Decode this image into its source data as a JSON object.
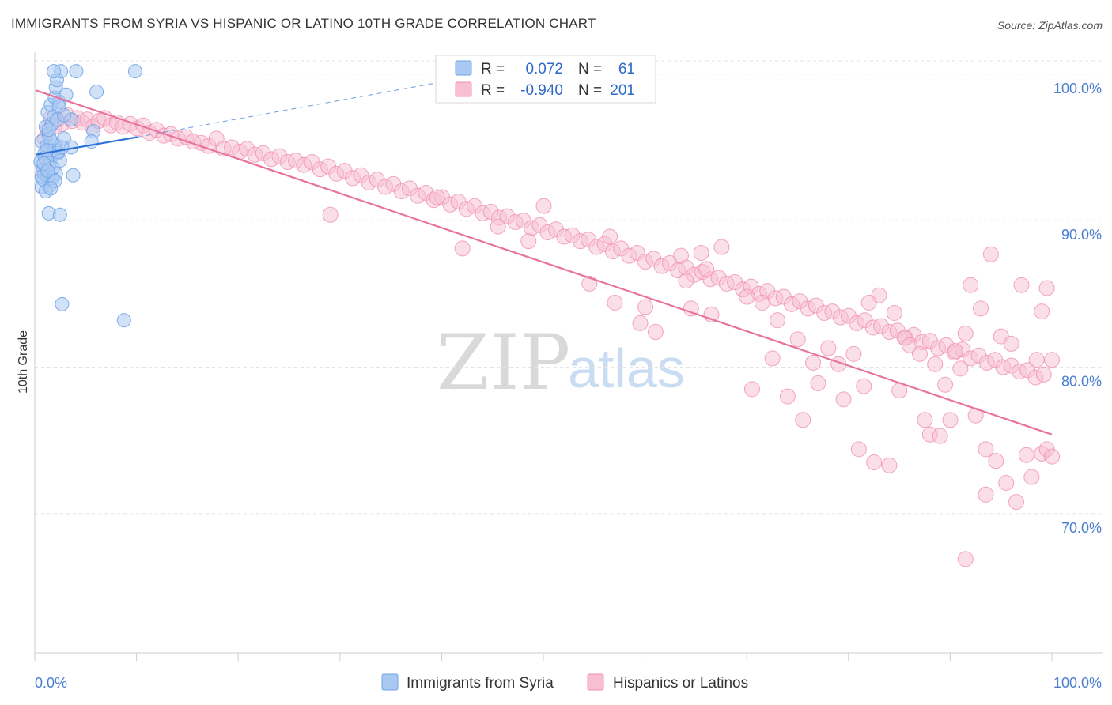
{
  "title": "IMMIGRANTS FROM SYRIA VS HISPANIC OR LATINO 10TH GRADE CORRELATION CHART",
  "source": "Source: ZipAtlas.com",
  "watermark": {
    "zip": "ZIP",
    "atlas": "atlas"
  },
  "colors": {
    "blue": "#6fa5e8",
    "blue_fill": "#a9c9f2",
    "blue_line": "#2f72d6",
    "pink": "#f08fb0",
    "pink_fill": "#f7bfd1",
    "pink_line": "#e8739c",
    "grid": "#e3e3e3",
    "tick_label": "#4a7fd0"
  },
  "stats_box": {
    "rows": [
      {
        "r_label": "R =",
        "r_value": "0.072",
        "n_label": "N =",
        "n_value": "61"
      },
      {
        "r_label": "R =",
        "r_value": "-0.940",
        "n_label": "N =",
        "n_value": "201"
      }
    ]
  },
  "legend": {
    "items": [
      {
        "label": "Immigrants from Syria"
      },
      {
        "label": "Hispanics or Latinos"
      }
    ]
  },
  "chart_data": {
    "type": "scatter",
    "title": "IMMIGRANTS FROM SYRIA VS HISPANIC OR LATINO 10TH GRADE CORRELATION CHART",
    "xlabel": "",
    "ylabel": "10th Grade",
    "xlim": [
      0,
      100
    ],
    "ylim": [
      60.5,
      101.5
    ],
    "x_tick_labels": [
      "0.0%",
      "100.0%"
    ],
    "y_ticks": [
      70,
      80,
      90,
      100
    ],
    "y_tick_labels": [
      "70.0%",
      "80.0%",
      "90.0%",
      "100.0%"
    ],
    "grid": true,
    "legend_position": "bottom",
    "series": [
      {
        "name": "Immigrants from Syria",
        "r": 0.072,
        "n": 61,
        "trend_solid": [
          [
            0.0,
            94.5
          ],
          [
            10.0,
            95.7
          ]
        ],
        "trend_dashed": [
          [
            10.0,
            95.7
          ],
          [
            41.0,
            99.6
          ]
        ],
        "points": [
          [
            0.6,
            92.3
          ],
          [
            0.5,
            94.0
          ],
          [
            0.7,
            93.3
          ],
          [
            0.8,
            92.8
          ],
          [
            1.0,
            93.6
          ],
          [
            1.2,
            93.0
          ],
          [
            1.4,
            92.4
          ],
          [
            0.6,
            95.4
          ],
          [
            0.9,
            94.6
          ],
          [
            1.1,
            95.1
          ],
          [
            1.3,
            93.8
          ],
          [
            1.5,
            94.3
          ],
          [
            1.8,
            94.8
          ],
          [
            2.0,
            93.2
          ],
          [
            1.0,
            96.4
          ],
          [
            1.3,
            95.9
          ],
          [
            1.6,
            96.6
          ],
          [
            1.9,
            95.2
          ],
          [
            2.2,
            94.6
          ],
          [
            2.4,
            94.1
          ],
          [
            1.2,
            97.4
          ],
          [
            1.5,
            97.9
          ],
          [
            1.8,
            97.1
          ],
          [
            2.1,
            96.9
          ],
          [
            2.3,
            98.1
          ],
          [
            1.9,
            98.4
          ],
          [
            2.0,
            99.1
          ],
          [
            2.1,
            99.6
          ],
          [
            2.5,
            100.2
          ],
          [
            1.8,
            100.2
          ],
          [
            4.0,
            100.2
          ],
          [
            9.8,
            100.2
          ],
          [
            3.0,
            98.6
          ],
          [
            3.5,
            96.9
          ],
          [
            2.8,
            95.6
          ],
          [
            3.5,
            95.0
          ],
          [
            5.7,
            96.1
          ],
          [
            5.5,
            95.4
          ],
          [
            6.0,
            98.8
          ],
          [
            3.7,
            93.1
          ],
          [
            1.3,
            90.5
          ],
          [
            2.4,
            90.4
          ],
          [
            2.6,
            84.3
          ],
          [
            8.7,
            83.2
          ],
          [
            0.7,
            93.5
          ],
          [
            1.0,
            92.0
          ],
          [
            1.6,
            92.9
          ],
          [
            2.2,
            94.7
          ],
          [
            0.9,
            94.3
          ],
          [
            1.4,
            95.6
          ],
          [
            1.7,
            93.6
          ],
          [
            2.6,
            95.0
          ],
          [
            0.8,
            93.9
          ],
          [
            1.1,
            94.8
          ],
          [
            1.9,
            92.7
          ],
          [
            1.3,
            96.2
          ],
          [
            2.8,
            97.2
          ],
          [
            0.6,
            93.0
          ],
          [
            1.5,
            92.2
          ],
          [
            2.3,
            97.8
          ],
          [
            1.2,
            93.4
          ]
        ]
      },
      {
        "name": "Hispanics or Latinos",
        "r": -0.94,
        "n": 201,
        "trend": [
          [
            0.0,
            98.9
          ],
          [
            100.0,
            75.4
          ]
        ],
        "points": [
          [
            0.9,
            95.6
          ],
          [
            1.2,
            96.2
          ],
          [
            1.5,
            97.0
          ],
          [
            1.8,
            96.4
          ],
          [
            2.2,
            96.9
          ],
          [
            2.6,
            96.6
          ],
          [
            3.1,
            97.2
          ],
          [
            3.6,
            96.8
          ],
          [
            4.1,
            97.0
          ],
          [
            4.6,
            96.7
          ],
          [
            5.1,
            96.9
          ],
          [
            5.6,
            96.4
          ],
          [
            6.2,
            96.8
          ],
          [
            6.8,
            97.0
          ],
          [
            7.4,
            96.5
          ],
          [
            8.0,
            96.7
          ],
          [
            8.6,
            96.4
          ],
          [
            9.3,
            96.6
          ],
          [
            10.0,
            96.3
          ],
          [
            10.6,
            96.5
          ],
          [
            11.2,
            96.0
          ],
          [
            11.9,
            96.2
          ],
          [
            12.6,
            95.8
          ],
          [
            13.3,
            95.9
          ],
          [
            14.0,
            95.6
          ],
          [
            14.8,
            95.7
          ],
          [
            15.5,
            95.4
          ],
          [
            16.3,
            95.3
          ],
          [
            17.0,
            95.1
          ],
          [
            17.8,
            95.6
          ],
          [
            18.5,
            94.9
          ],
          [
            19.3,
            95.0
          ],
          [
            20.1,
            94.7
          ],
          [
            20.8,
            94.9
          ],
          [
            21.6,
            94.5
          ],
          [
            22.4,
            94.6
          ],
          [
            23.2,
            94.2
          ],
          [
            24.0,
            94.4
          ],
          [
            24.8,
            94.0
          ],
          [
            25.6,
            94.1
          ],
          [
            26.4,
            93.8
          ],
          [
            27.2,
            94.0
          ],
          [
            28.0,
            93.5
          ],
          [
            28.8,
            93.7
          ],
          [
            29.6,
            93.2
          ],
          [
            30.4,
            93.4
          ],
          [
            31.2,
            92.9
          ],
          [
            32.0,
            93.1
          ],
          [
            32.8,
            92.6
          ],
          [
            33.6,
            92.8
          ],
          [
            34.4,
            92.3
          ],
          [
            35.2,
            92.5
          ],
          [
            36.0,
            92.0
          ],
          [
            36.8,
            92.2
          ],
          [
            37.6,
            91.7
          ],
          [
            38.4,
            91.9
          ],
          [
            39.2,
            91.4
          ],
          [
            40.0,
            91.6
          ],
          [
            40.8,
            91.1
          ],
          [
            41.6,
            91.3
          ],
          [
            42.4,
            90.8
          ],
          [
            43.2,
            91.0
          ],
          [
            44.0,
            90.5
          ],
          [
            44.8,
            90.6
          ],
          [
            45.6,
            90.2
          ],
          [
            46.4,
            90.3
          ],
          [
            47.2,
            89.9
          ],
          [
            48.0,
            90.0
          ],
          [
            48.8,
            89.5
          ],
          [
            49.6,
            89.7
          ],
          [
            50.4,
            89.2
          ],
          [
            51.2,
            89.4
          ],
          [
            52.0,
            88.9
          ],
          [
            52.8,
            89.0
          ],
          [
            53.6,
            88.6
          ],
          [
            54.4,
            88.7
          ],
          [
            55.2,
            88.2
          ],
          [
            56.0,
            88.4
          ],
          [
            56.8,
            87.9
          ],
          [
            57.6,
            88.1
          ],
          [
            58.4,
            87.6
          ],
          [
            59.2,
            87.8
          ],
          [
            60.0,
            87.2
          ],
          [
            60.8,
            87.4
          ],
          [
            61.6,
            86.9
          ],
          [
            62.4,
            87.1
          ],
          [
            63.2,
            86.6
          ],
          [
            64.0,
            86.8
          ],
          [
            64.8,
            86.3
          ],
          [
            65.6,
            86.5
          ],
          [
            66.4,
            86.0
          ],
          [
            67.2,
            86.1
          ],
          [
            68.0,
            85.7
          ],
          [
            68.8,
            85.8
          ],
          [
            69.6,
            85.3
          ],
          [
            70.4,
            85.5
          ],
          [
            71.2,
            85.0
          ],
          [
            72.0,
            85.2
          ],
          [
            72.8,
            84.7
          ],
          [
            73.6,
            84.8
          ],
          [
            74.4,
            84.3
          ],
          [
            75.2,
            84.5
          ],
          [
            76.0,
            84.0
          ],
          [
            76.8,
            84.2
          ],
          [
            77.6,
            83.7
          ],
          [
            78.4,
            83.8
          ],
          [
            79.2,
            83.4
          ],
          [
            80.0,
            83.5
          ],
          [
            80.8,
            83.0
          ],
          [
            81.6,
            83.2
          ],
          [
            82.4,
            82.7
          ],
          [
            83.2,
            82.8
          ],
          [
            84.0,
            82.4
          ],
          [
            84.8,
            82.5
          ],
          [
            85.6,
            82.0
          ],
          [
            86.4,
            82.2
          ],
          [
            87.2,
            81.7
          ],
          [
            88.0,
            81.8
          ],
          [
            88.8,
            81.3
          ],
          [
            89.6,
            81.5
          ],
          [
            90.4,
            81.0
          ],
          [
            91.2,
            81.2
          ],
          [
            92.0,
            80.6
          ],
          [
            92.8,
            80.8
          ],
          [
            93.6,
            80.3
          ],
          [
            94.4,
            80.5
          ],
          [
            95.2,
            80.0
          ],
          [
            96.0,
            80.1
          ],
          [
            96.8,
            79.7
          ],
          [
            97.6,
            79.8
          ],
          [
            98.4,
            79.3
          ],
          [
            99.2,
            79.5
          ],
          [
            29.0,
            90.4
          ],
          [
            50.0,
            91.0
          ],
          [
            39.5,
            91.6
          ],
          [
            45.5,
            89.6
          ],
          [
            42.0,
            88.1
          ],
          [
            48.5,
            88.6
          ],
          [
            56.5,
            88.9
          ],
          [
            63.5,
            87.6
          ],
          [
            65.5,
            87.8
          ],
          [
            67.5,
            88.2
          ],
          [
            66.0,
            86.7
          ],
          [
            64.0,
            85.9
          ],
          [
            70.0,
            84.8
          ],
          [
            71.5,
            84.4
          ],
          [
            60.0,
            84.1
          ],
          [
            57.0,
            84.4
          ],
          [
            54.5,
            85.7
          ],
          [
            59.5,
            83.0
          ],
          [
            61.0,
            82.4
          ],
          [
            64.5,
            84.0
          ],
          [
            66.5,
            83.6
          ],
          [
            73.0,
            83.2
          ],
          [
            75.0,
            81.9
          ],
          [
            76.5,
            80.3
          ],
          [
            78.0,
            81.3
          ],
          [
            79.0,
            80.2
          ],
          [
            80.5,
            80.9
          ],
          [
            81.5,
            78.7
          ],
          [
            77.0,
            78.9
          ],
          [
            83.0,
            84.9
          ],
          [
            82.0,
            84.4
          ],
          [
            84.5,
            83.7
          ],
          [
            85.5,
            82.0
          ],
          [
            86.0,
            81.5
          ],
          [
            87.0,
            80.9
          ],
          [
            88.5,
            80.2
          ],
          [
            89.5,
            78.8
          ],
          [
            90.0,
            76.4
          ],
          [
            91.0,
            79.9
          ],
          [
            92.5,
            76.7
          ],
          [
            93.5,
            74.4
          ],
          [
            94.5,
            73.6
          ],
          [
            95.5,
            72.1
          ],
          [
            96.5,
            70.8
          ],
          [
            97.5,
            74.0
          ],
          [
            98.0,
            72.5
          ],
          [
            99.0,
            74.1
          ],
          [
            99.5,
            74.4
          ],
          [
            100.0,
            73.9
          ],
          [
            70.5,
            78.5
          ],
          [
            72.5,
            80.6
          ],
          [
            74.0,
            78.0
          ],
          [
            75.5,
            76.4
          ],
          [
            79.5,
            77.8
          ],
          [
            81.0,
            74.4
          ],
          [
            82.5,
            73.5
          ],
          [
            84.0,
            73.3
          ],
          [
            85.0,
            78.4
          ],
          [
            87.5,
            76.4
          ],
          [
            88.0,
            75.4
          ],
          [
            89.0,
            75.3
          ],
          [
            90.5,
            81.1
          ],
          [
            91.5,
            82.3
          ],
          [
            92.0,
            85.6
          ],
          [
            93.0,
            84.0
          ],
          [
            94.0,
            87.7
          ],
          [
            95.0,
            82.1
          ],
          [
            96.0,
            81.6
          ],
          [
            97.0,
            85.6
          ],
          [
            98.5,
            80.5
          ],
          [
            99.0,
            83.8
          ],
          [
            99.5,
            85.4
          ],
          [
            100.0,
            80.5
          ],
          [
            91.5,
            66.9
          ],
          [
            93.5,
            71.3
          ]
        ]
      }
    ]
  }
}
